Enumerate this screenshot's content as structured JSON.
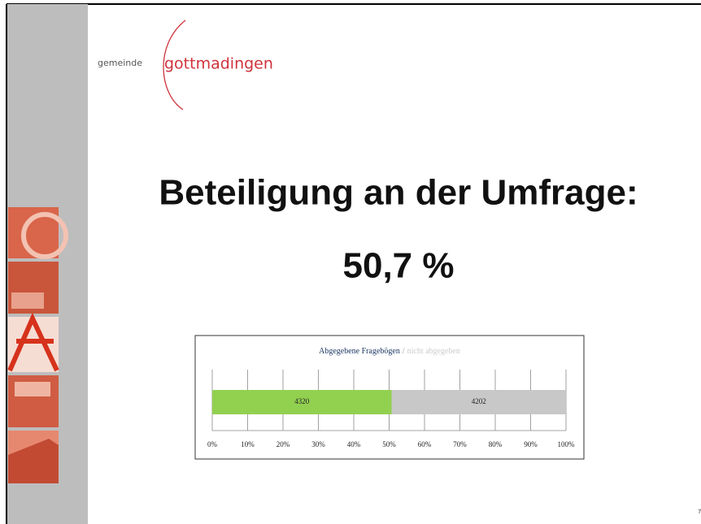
{
  "logo": {
    "prefix": "gemeinde",
    "name": "gottmadingen"
  },
  "title": "Beteiligung an der Umfrage:",
  "subtitle": "50,7 %",
  "page_number": "7",
  "chart_data": {
    "type": "bar",
    "stacked": "percent",
    "orientation": "horizontal",
    "title_separator": "/",
    "series": [
      {
        "name": "Abgegebene Fragebögen",
        "color": "#92d050",
        "values": [
          4320
        ]
      },
      {
        "name": "nicht abgegeben",
        "color": "#c8c8c8",
        "values": [
          4202
        ]
      }
    ],
    "xlim": [
      0,
      100
    ],
    "xticks": [
      {
        "value": 0,
        "label": "0%"
      },
      {
        "value": 10,
        "label": "10%"
      },
      {
        "value": 20,
        "label": "20%"
      },
      {
        "value": 30,
        "label": "30%"
      },
      {
        "value": 40,
        "label": "40%"
      },
      {
        "value": 50,
        "label": "50%"
      },
      {
        "value": 60,
        "label": "60%"
      },
      {
        "value": 70,
        "label": "70%"
      },
      {
        "value": 80,
        "label": "80%"
      },
      {
        "value": 90,
        "label": "90%"
      },
      {
        "value": 100,
        "label": "100%"
      }
    ],
    "grid": true
  }
}
